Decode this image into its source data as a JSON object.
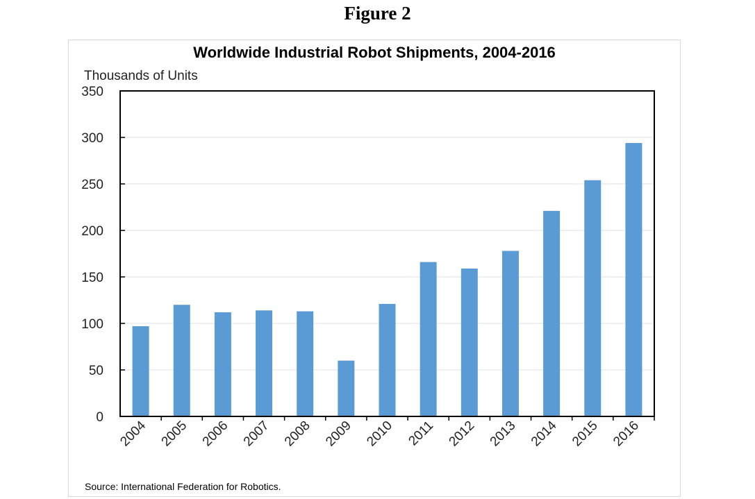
{
  "figure_label": "Figure 2",
  "chart_data": {
    "type": "bar",
    "title": "Worldwide Industrial Robot Shipments, 2004-2016",
    "ylabel": "Thousands of Units",
    "xlabel": "",
    "categories": [
      "2004",
      "2005",
      "2006",
      "2007",
      "2008",
      "2009",
      "2010",
      "2011",
      "2012",
      "2013",
      "2014",
      "2015",
      "2016"
    ],
    "values": [
      97,
      120,
      112,
      114,
      113,
      60,
      121,
      166,
      159,
      178,
      221,
      254,
      294
    ],
    "ylim": [
      0,
      350
    ],
    "yticks": [
      0,
      50,
      100,
      150,
      200,
      250,
      300,
      350
    ],
    "grid": true,
    "bar_color": "#5b9bd5",
    "source": "Source: International Federation for Robotics."
  }
}
